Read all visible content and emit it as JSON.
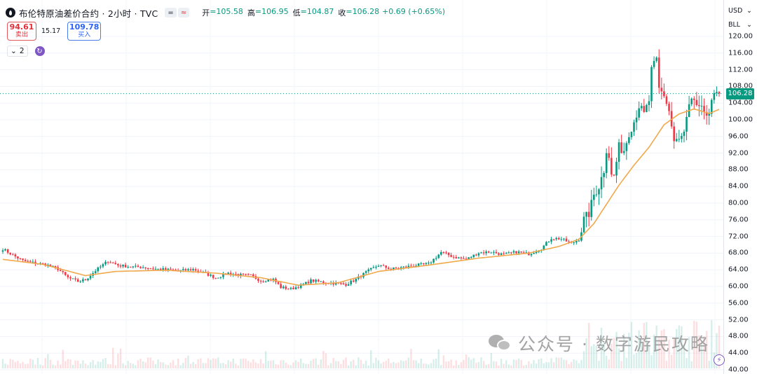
{
  "header": {
    "title": "布伦特原油差价合约 · 2小时 · TVC",
    "btn_minus": "=",
    "btn_wave": "≈",
    "ohlc": [
      {
        "k": "开",
        "v": "=105.58"
      },
      {
        "k": "高",
        "v": "=106.95"
      },
      {
        "k": "低",
        "v": "=104.87"
      },
      {
        "k": "收",
        "v": "=106.28"
      }
    ],
    "change": "+0.69 (+0.65%)"
  },
  "trade": {
    "sell_price": "94.61",
    "sell_label": "卖出",
    "spread": "15.17",
    "buy_price": "109.78",
    "buy_label": "买入"
  },
  "study": {
    "count": "2",
    "chevron": "⌄"
  },
  "axis": {
    "currency": "USD",
    "unit": "BLL",
    "last_price": "106.28"
  },
  "watermark": "公众号 · 数字游民攻略",
  "colors": {
    "up": "#089981",
    "down": "#f23645",
    "ma": "#f0a94b",
    "last_line": "#089981"
  },
  "chart_data": {
    "type": "candlestick",
    "ylim": [
      40,
      120
    ],
    "yticks": [
      "120.00",
      "116.00",
      "112.00",
      "108.00",
      "104.00",
      "100.00",
      "96.00",
      "92.00",
      "88.00",
      "84.00",
      "80.00",
      "76.00",
      "72.00",
      "68.00",
      "64.00",
      "60.00",
      "56.00",
      "52.00",
      "48.00",
      "44.00",
      "40.00"
    ],
    "last": 106.28,
    "close_path": [
      [
        0,
        69
      ],
      [
        4,
        67.5
      ],
      [
        8,
        66.2
      ],
      [
        13,
        65.6
      ],
      [
        17,
        65.3
      ],
      [
        22,
        64.2
      ],
      [
        26,
        62.1
      ],
      [
        30,
        61.2
      ],
      [
        33,
        61.6
      ],
      [
        37,
        63.8
      ],
      [
        42,
        66.1
      ],
      [
        46,
        65.1
      ],
      [
        51,
        64.7
      ],
      [
        56,
        64.6
      ],
      [
        61,
        64.2
      ],
      [
        66,
        64.0
      ],
      [
        71,
        63.8
      ],
      [
        76,
        64.1
      ],
      [
        80,
        63.3
      ],
      [
        85,
        62.1
      ],
      [
        90,
        63.2
      ],
      [
        94,
        62.8
      ],
      [
        99,
        62.6
      ],
      [
        103,
        61.4
      ],
      [
        108,
        61.7
      ],
      [
        111,
        59.8
      ],
      [
        115,
        59.4
      ],
      [
        119,
        60.2
      ],
      [
        123,
        61.4
      ],
      [
        127,
        61.1
      ],
      [
        131,
        60.8
      ],
      [
        134,
        60.7
      ],
      [
        137,
        60.5
      ],
      [
        141,
        61.7
      ],
      [
        145,
        63.4
      ],
      [
        150,
        65.1
      ],
      [
        155,
        64.2
      ],
      [
        160,
        64.6
      ],
      [
        165,
        65.1
      ],
      [
        170,
        65.4
      ],
      [
        175,
        68.2
      ],
      [
        180,
        67.1
      ],
      [
        185,
        66.5
      ],
      [
        190,
        68.1
      ],
      [
        195,
        68.3
      ],
      [
        200,
        67.6
      ],
      [
        205,
        68.3
      ],
      [
        210,
        67.8
      ],
      [
        215,
        69.1
      ],
      [
        219,
        71.6
      ],
      [
        223,
        71.4
      ],
      [
        227,
        70.3
      ],
      [
        230,
        71.3
      ],
      [
        232,
        76.0
      ],
      [
        234,
        77.5
      ],
      [
        236,
        82.0
      ],
      [
        238,
        84.0
      ],
      [
        240,
        88.0
      ],
      [
        241,
        93.0
      ],
      [
        242,
        91.4
      ],
      [
        243,
        86.5
      ],
      [
        244,
        86.5
      ],
      [
        246,
        93.4
      ],
      [
        248,
        92.7
      ],
      [
        250,
        97.0
      ],
      [
        252,
        99.6
      ],
      [
        254,
        103.4
      ],
      [
        256,
        101.2
      ],
      [
        258,
        104.6
      ],
      [
        259,
        111.8
      ],
      [
        261,
        114.2
      ],
      [
        262,
        107.3
      ],
      [
        264,
        106.0
      ],
      [
        266,
        102.1
      ],
      [
        268,
        94.7
      ],
      [
        270,
        95.0
      ],
      [
        272,
        96.6
      ],
      [
        274,
        102.9
      ],
      [
        276,
        104.9
      ],
      [
        278,
        102.2
      ],
      [
        280,
        102.2
      ],
      [
        282,
        101.8
      ],
      [
        284,
        105.9
      ],
      [
        286,
        106.3
      ]
    ],
    "ma_path": [
      [
        0,
        66.5
      ],
      [
        16,
        65.3
      ],
      [
        33,
        62.6
      ],
      [
        45,
        63.6
      ],
      [
        65,
        63.9
      ],
      [
        85,
        63.2
      ],
      [
        103,
        62.1
      ],
      [
        118,
        60.3
      ],
      [
        134,
        60.9
      ],
      [
        150,
        63.6
      ],
      [
        170,
        65.1
      ],
      [
        190,
        66.8
      ],
      [
        210,
        68.0
      ],
      [
        222,
        69.6
      ],
      [
        230,
        71.3
      ],
      [
        236,
        75.1
      ],
      [
        241,
        79.7
      ],
      [
        246,
        84.3
      ],
      [
        252,
        89.1
      ],
      [
        258,
        93.4
      ],
      [
        264,
        98.8
      ],
      [
        270,
        101.4
      ],
      [
        276,
        102.6
      ],
      [
        282,
        101.5
      ],
      [
        286,
        102.5
      ]
    ],
    "n_candles": 287
  }
}
